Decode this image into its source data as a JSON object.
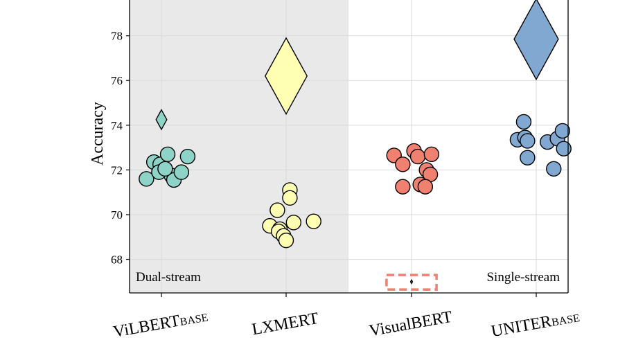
{
  "chart_data": {
    "type": "scatter",
    "ylabel": "Accuracy",
    "ylim": [
      66.5,
      79.6
    ],
    "yticks": [
      68,
      70,
      72,
      74,
      76,
      78
    ],
    "grid": true,
    "categories": [
      {
        "main": "ViLBERT",
        "sub": "BASE"
      },
      {
        "main": "LXMERT",
        "sub": ""
      },
      {
        "main": "VisualBERT",
        "sub": ""
      },
      {
        "main": "UNITER",
        "sub": "BASE"
      }
    ],
    "regions": [
      {
        "label": "Dual-stream",
        "shaded": true,
        "categories": [
          0,
          1
        ]
      },
      {
        "label": "Single-stream",
        "shaded": false,
        "categories": [
          2,
          3
        ]
      }
    ],
    "series": [
      {
        "category": 0,
        "color": "#8dd3c7",
        "points": [
          {
            "dx": -0.12,
            "y": 71.6
          },
          {
            "dx": -0.06,
            "y": 72.35
          },
          {
            "dx": -0.01,
            "y": 72.25
          },
          {
            "dx": 0.05,
            "y": 72.7
          },
          {
            "dx": -0.02,
            "y": 71.9
          },
          {
            "dx": 0.08,
            "y": 71.75
          },
          {
            "dx": 0.1,
            "y": 71.55
          },
          {
            "dx": 0.16,
            "y": 71.9
          },
          {
            "dx": 0.21,
            "y": 72.6
          },
          {
            "dx": 0.03,
            "y": 72.05
          }
        ],
        "diamond": {
          "y": 74.25,
          "size": 0.44
        }
      },
      {
        "category": 1,
        "color": "#ffffb3",
        "points": [
          {
            "dx": 0.03,
            "y": 71.1
          },
          {
            "dx": 0.03,
            "y": 70.75
          },
          {
            "dx": -0.07,
            "y": 70.2
          },
          {
            "dx": -0.13,
            "y": 69.5
          },
          {
            "dx": 0.06,
            "y": 69.65
          },
          {
            "dx": 0.22,
            "y": 69.7
          },
          {
            "dx": -0.05,
            "y": 69.35
          },
          {
            "dx": -0.06,
            "y": 69.25
          },
          {
            "dx": -0.02,
            "y": 69.05
          },
          {
            "dx": 0.0,
            "y": 68.85
          }
        ],
        "diamond": {
          "y": 76.2,
          "size": 1.7
        }
      },
      {
        "category": 2,
        "color": "#f08070",
        "points": [
          {
            "dx": -0.14,
            "y": 72.65
          },
          {
            "dx": 0.02,
            "y": 72.85
          },
          {
            "dx": 0.05,
            "y": 72.6
          },
          {
            "dx": 0.16,
            "y": 72.7
          },
          {
            "dx": -0.07,
            "y": 72.25
          },
          {
            "dx": 0.12,
            "y": 72.0
          },
          {
            "dx": 0.15,
            "y": 71.8
          },
          {
            "dx": -0.07,
            "y": 71.25
          },
          {
            "dx": 0.07,
            "y": 71.35
          },
          {
            "dx": 0.11,
            "y": 71.25
          }
        ],
        "diamond": {
          "y": 67.0,
          "size": 0.08
        },
        "highlight": {
          "y_top": 67.3,
          "y_bottom": 66.65,
          "half_width": 0.2,
          "color": "#f08070"
        }
      },
      {
        "category": 3,
        "color": "#80a8d0",
        "points": [
          {
            "dx": -0.1,
            "y": 74.15
          },
          {
            "dx": -0.15,
            "y": 73.35
          },
          {
            "dx": -0.09,
            "y": 73.45
          },
          {
            "dx": -0.07,
            "y": 73.3
          },
          {
            "dx": -0.07,
            "y": 72.55
          },
          {
            "dx": 0.09,
            "y": 73.25
          },
          {
            "dx": 0.17,
            "y": 73.4
          },
          {
            "dx": 0.21,
            "y": 73.75
          },
          {
            "dx": 0.22,
            "y": 72.95
          },
          {
            "dx": 0.14,
            "y": 72.05
          }
        ],
        "diamond": {
          "y": 77.85,
          "size": 1.8
        }
      }
    ]
  }
}
